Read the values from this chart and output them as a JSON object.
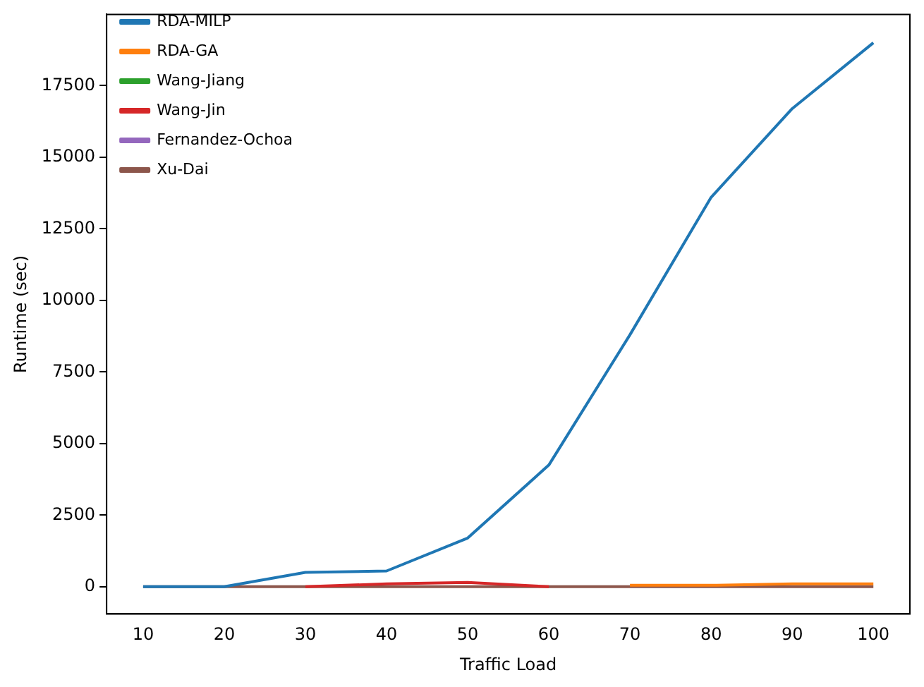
{
  "chart_data": {
    "type": "line",
    "xlabel": "Traffic Load",
    "ylabel": "Runtime (sec)",
    "x": [
      10,
      20,
      30,
      40,
      50,
      60,
      70,
      80,
      90,
      100
    ],
    "xlim": [
      5.5,
      104.5
    ],
    "xticks": [
      10,
      20,
      30,
      40,
      50,
      60,
      70,
      80,
      90,
      100
    ],
    "ylim": [
      -950,
      19990
    ],
    "yticks": [
      0,
      2500,
      5000,
      7500,
      10000,
      12500,
      15000,
      17500
    ],
    "legend": "top left",
    "grid": false,
    "series": [
      {
        "name": "RDA-MILP",
        "color": "#1f77b4",
        "values": [
          0,
          0,
          500,
          550,
          1700,
          4250,
          8800,
          13600,
          16700,
          19000
        ]
      },
      {
        "name": "RDA-GA",
        "color": "#ff7f0e",
        "values": [
          null,
          null,
          null,
          null,
          null,
          null,
          50,
          50,
          100,
          100
        ]
      },
      {
        "name": "Wang-Jiang",
        "color": "#2ca02c",
        "values": [
          null,
          null,
          null,
          null,
          null,
          null,
          null,
          null,
          null,
          null
        ]
      },
      {
        "name": "Wang-Jin",
        "color": "#d62728",
        "values": [
          null,
          null,
          0,
          100,
          150,
          0,
          null,
          null,
          null,
          null
        ]
      },
      {
        "name": "Fernandez-Ochoa",
        "color": "#9467bd",
        "values": [
          null,
          null,
          null,
          null,
          null,
          null,
          null,
          null,
          null,
          null
        ]
      },
      {
        "name": "Xu-Dai",
        "color": "#8c564b",
        "values": [
          0,
          0,
          0,
          0,
          0,
          0,
          0,
          0,
          0,
          0
        ]
      }
    ]
  }
}
